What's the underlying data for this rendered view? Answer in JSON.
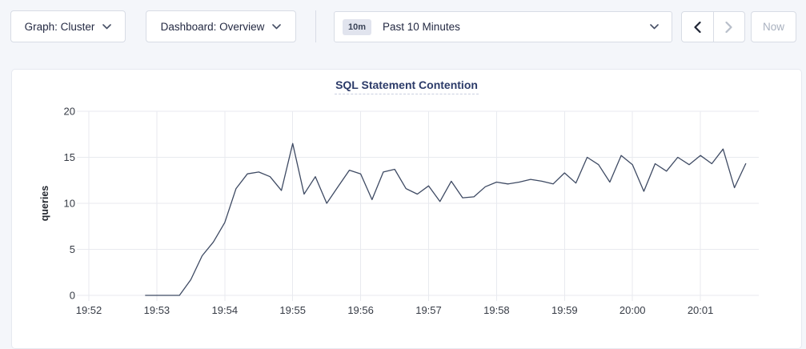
{
  "toolbar": {
    "graph_dropdown_label": "Graph: Cluster",
    "dashboard_dropdown_label": "Dashboard: Overview",
    "time_window_badge": "10m",
    "time_window_label": "Past 10 Minutes",
    "now_button_label": "Now"
  },
  "chart_data": {
    "type": "line",
    "title": "SQL Statement Contention",
    "xlabel": "",
    "ylabel": "queries",
    "ylim": [
      0,
      20
    ],
    "y_ticks": [
      0,
      5,
      10,
      15,
      20
    ],
    "x_ticks": [
      "19:52",
      "19:53",
      "19:54",
      "19:55",
      "19:56",
      "19:57",
      "19:58",
      "19:59",
      "20:00",
      "20:01"
    ],
    "start_time": "19:52:50",
    "interval_seconds": 10,
    "grid": true,
    "legend_position": "none",
    "line_color": "#3e4a63",
    "series": [
      {
        "name": "queries",
        "values": [
          0,
          0,
          0,
          0,
          1.7,
          4.3,
          5.8,
          7.9,
          11.6,
          13.2,
          13.4,
          12.9,
          11.4,
          16.5,
          11.0,
          12.9,
          10.0,
          11.8,
          13.6,
          13.2,
          10.4,
          13.4,
          13.7,
          11.6,
          11.0,
          11.9,
          10.2,
          12.4,
          10.6,
          10.7,
          11.8,
          12.3,
          12.1,
          12.3,
          12.6,
          12.4,
          12.1,
          13.3,
          12.2,
          15.0,
          14.2,
          12.3,
          15.2,
          14.2,
          11.3,
          14.3,
          13.5,
          15.0,
          14.2,
          15.2,
          14.3,
          15.9,
          11.7,
          14.3
        ]
      }
    ]
  }
}
